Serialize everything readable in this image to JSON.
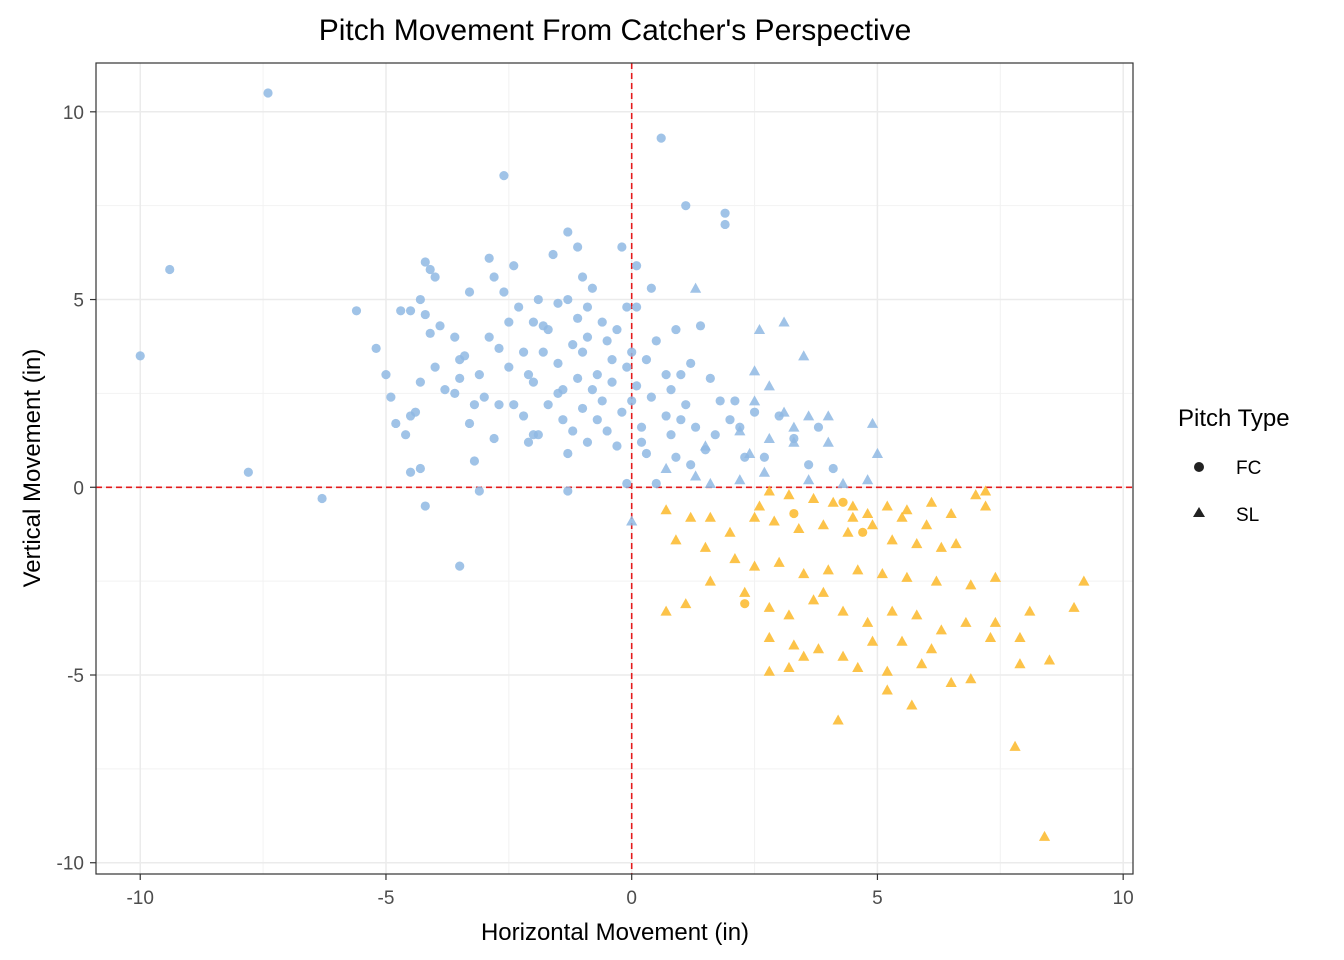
{
  "chart_data": {
    "type": "scatter",
    "title": "Pitch Movement From Catcher's Perspective",
    "xlabel": "Horizontal Movement (in)",
    "ylabel": "Vertical Movement (in)",
    "xlim": [
      -10.9,
      10.2
    ],
    "ylim": [
      -10.3,
      11.3
    ],
    "x_ticks": [
      -10,
      -5,
      0,
      5,
      10
    ],
    "y_ticks": [
      -10,
      -5,
      0,
      5,
      10
    ],
    "x_tick_labels": [
      "-10",
      "-5",
      "0",
      "5",
      "10"
    ],
    "y_tick_labels": [
      "-10",
      "-5",
      "0",
      "5",
      "10"
    ],
    "grid": true,
    "reference_lines": {
      "x": 0,
      "y": 0,
      "color": "#e41a1c",
      "style": "dashed"
    },
    "legend": {
      "title": "Pitch Type",
      "position": "right"
    },
    "point_color_rule": "blue when x<0 or y>0, orange when x>0 and y<0",
    "colors": {
      "blue": "#8fb8e3",
      "orange": "#fbb829"
    },
    "series": [
      {
        "name": "FC",
        "marker": "circle",
        "points": [
          [
            -10.0,
            3.5
          ],
          [
            -9.4,
            5.8
          ],
          [
            -7.4,
            10.5
          ],
          [
            -7.8,
            0.4
          ],
          [
            -6.3,
            -0.3
          ],
          [
            -5.6,
            4.7
          ],
          [
            -5.2,
            3.7
          ],
          [
            -5.0,
            3.0
          ],
          [
            -4.8,
            1.7
          ],
          [
            -4.7,
            4.7
          ],
          [
            -4.5,
            4.7
          ],
          [
            -4.5,
            1.9
          ],
          [
            -4.6,
            1.4
          ],
          [
            -4.5,
            0.4
          ],
          [
            -4.3,
            5.0
          ],
          [
            -4.3,
            2.8
          ],
          [
            -4.3,
            0.5
          ],
          [
            -4.2,
            6.0
          ],
          [
            -4.2,
            4.6
          ],
          [
            -4.1,
            5.8
          ],
          [
            -4.1,
            4.1
          ],
          [
            -4.0,
            3.2
          ],
          [
            -4.0,
            5.6
          ],
          [
            -3.9,
            4.3
          ],
          [
            -3.8,
            2.6
          ],
          [
            -3.6,
            4.0
          ],
          [
            -3.5,
            3.4
          ],
          [
            -3.5,
            2.9
          ],
          [
            -3.4,
            3.5
          ],
          [
            -3.3,
            5.2
          ],
          [
            -3.3,
            1.7
          ],
          [
            -3.2,
            2.2
          ],
          [
            -3.1,
            3.0
          ],
          [
            -3.0,
            2.4
          ],
          [
            -2.9,
            6.1
          ],
          [
            -2.9,
            4.0
          ],
          [
            -2.8,
            5.6
          ],
          [
            -2.8,
            1.3
          ],
          [
            -2.7,
            3.7
          ],
          [
            -2.7,
            2.2
          ],
          [
            -2.6,
            8.3
          ],
          [
            -2.6,
            5.2
          ],
          [
            -2.5,
            4.4
          ],
          [
            -2.5,
            3.2
          ],
          [
            -2.4,
            2.2
          ],
          [
            -2.4,
            5.9
          ],
          [
            -2.3,
            4.8
          ],
          [
            -2.2,
            3.6
          ],
          [
            -2.2,
            1.9
          ],
          [
            -2.1,
            1.2
          ],
          [
            -2.1,
            3.0
          ],
          [
            -2.0,
            2.8
          ],
          [
            -2.0,
            4.4
          ],
          [
            -1.9,
            5.0
          ],
          [
            -1.9,
            1.4
          ],
          [
            -1.8,
            4.3
          ],
          [
            -1.8,
            3.6
          ],
          [
            -1.7,
            2.2
          ],
          [
            -1.7,
            4.2
          ],
          [
            -1.6,
            6.2
          ],
          [
            -1.5,
            3.3
          ],
          [
            -1.5,
            4.9
          ],
          [
            -1.4,
            1.8
          ],
          [
            -1.4,
            2.6
          ],
          [
            -1.3,
            5.0
          ],
          [
            -1.3,
            6.8
          ],
          [
            -1.3,
            0.9
          ],
          [
            -1.2,
            3.8
          ],
          [
            -1.2,
            1.5
          ],
          [
            -1.1,
            6.4
          ],
          [
            -1.1,
            2.9
          ],
          [
            -1.1,
            4.5
          ],
          [
            -1.0,
            3.6
          ],
          [
            -1.0,
            2.1
          ],
          [
            -1.0,
            5.6
          ],
          [
            -0.9,
            4.8
          ],
          [
            -0.9,
            1.2
          ],
          [
            -0.8,
            5.3
          ],
          [
            -0.8,
            2.6
          ],
          [
            -0.7,
            3.0
          ],
          [
            -0.7,
            1.8
          ],
          [
            -0.6,
            4.4
          ],
          [
            -0.6,
            2.3
          ],
          [
            -0.5,
            3.9
          ],
          [
            -0.5,
            1.5
          ],
          [
            -0.4,
            3.4
          ],
          [
            -0.4,
            2.8
          ],
          [
            -0.3,
            4.2
          ],
          [
            -0.3,
            1.1
          ],
          [
            -0.2,
            6.4
          ],
          [
            -0.2,
            2.0
          ],
          [
            -0.1,
            4.8
          ],
          [
            -0.1,
            3.2
          ],
          [
            -0.1,
            0.1
          ],
          [
            0.0,
            2.3
          ],
          [
            0.0,
            3.6
          ],
          [
            0.1,
            4.8
          ],
          [
            0.1,
            2.7
          ],
          [
            0.2,
            1.6
          ],
          [
            0.2,
            1.2
          ],
          [
            0.3,
            3.4
          ],
          [
            0.3,
            0.9
          ],
          [
            0.4,
            2.4
          ],
          [
            0.4,
            5.3
          ],
          [
            0.5,
            0.1
          ],
          [
            0.5,
            3.9
          ],
          [
            0.6,
            9.3
          ],
          [
            0.7,
            1.9
          ],
          [
            0.7,
            3.0
          ],
          [
            0.8,
            1.4
          ],
          [
            0.8,
            2.6
          ],
          [
            0.9,
            0.8
          ],
          [
            0.9,
            4.2
          ],
          [
            1.0,
            1.8
          ],
          [
            1.0,
            3.0
          ],
          [
            1.1,
            7.5
          ],
          [
            1.1,
            2.2
          ],
          [
            1.2,
            0.6
          ],
          [
            1.2,
            3.3
          ],
          [
            1.3,
            1.6
          ],
          [
            1.4,
            4.3
          ],
          [
            1.5,
            1.0
          ],
          [
            1.6,
            2.9
          ],
          [
            1.7,
            1.4
          ],
          [
            1.8,
            2.3
          ],
          [
            1.9,
            7.0
          ],
          [
            1.9,
            7.3
          ],
          [
            2.0,
            1.8
          ],
          [
            2.1,
            2.3
          ],
          [
            2.2,
            1.6
          ],
          [
            2.3,
            0.8
          ],
          [
            2.5,
            2.0
          ],
          [
            2.7,
            0.8
          ],
          [
            3.0,
            1.9
          ],
          [
            3.3,
            1.3
          ],
          [
            3.6,
            0.6
          ],
          [
            3.8,
            1.6
          ],
          [
            4.1,
            0.5
          ],
          [
            2.3,
            -3.1
          ],
          [
            3.3,
            -0.7
          ],
          [
            4.3,
            -0.4
          ],
          [
            4.7,
            -1.2
          ],
          [
            -4.4,
            2.0
          ],
          [
            -3.2,
            0.7
          ],
          [
            -2.0,
            1.4
          ],
          [
            -0.9,
            4.0
          ],
          [
            0.1,
            5.9
          ],
          [
            -1.5,
            2.5
          ],
          [
            -3.6,
            2.5
          ],
          [
            -4.9,
            2.4
          ],
          [
            -3.5,
            -2.1
          ],
          [
            -4.2,
            -0.5
          ],
          [
            -3.1,
            -0.1
          ],
          [
            -1.3,
            -0.1
          ]
        ]
      },
      {
        "name": "SL",
        "marker": "triangle",
        "points": [
          [
            1.3,
            5.3
          ],
          [
            2.6,
            4.2
          ],
          [
            3.1,
            4.4
          ],
          [
            3.5,
            3.5
          ],
          [
            2.5,
            3.1
          ],
          [
            2.8,
            2.7
          ],
          [
            2.5,
            2.3
          ],
          [
            3.1,
            2.0
          ],
          [
            3.6,
            1.9
          ],
          [
            4.0,
            1.9
          ],
          [
            4.9,
            1.7
          ],
          [
            2.8,
            1.3
          ],
          [
            3.3,
            1.2
          ],
          [
            4.0,
            1.2
          ],
          [
            5.0,
            0.9
          ],
          [
            2.2,
            1.5
          ],
          [
            2.4,
            0.9
          ],
          [
            2.7,
            0.4
          ],
          [
            3.6,
            0.2
          ],
          [
            4.3,
            0.1
          ],
          [
            4.8,
            0.2
          ],
          [
            0.7,
            0.5
          ],
          [
            1.3,
            0.3
          ],
          [
            1.6,
            0.1
          ],
          [
            2.2,
            0.2
          ],
          [
            2.8,
            -0.1
          ],
          [
            3.2,
            -0.2
          ],
          [
            3.7,
            -0.3
          ],
          [
            4.1,
            -0.4
          ],
          [
            4.5,
            -0.5
          ],
          [
            4.8,
            -0.7
          ],
          [
            5.2,
            -0.5
          ],
          [
            5.6,
            -0.6
          ],
          [
            6.1,
            -0.4
          ],
          [
            6.5,
            -0.7
          ],
          [
            7.0,
            -0.2
          ],
          [
            7.2,
            -0.5
          ],
          [
            0.0,
            -0.9
          ],
          [
            0.7,
            -0.6
          ],
          [
            1.2,
            -0.8
          ],
          [
            1.6,
            -0.8
          ],
          [
            2.0,
            -1.2
          ],
          [
            2.5,
            -0.8
          ],
          [
            2.9,
            -0.9
          ],
          [
            3.4,
            -1.1
          ],
          [
            3.9,
            -1.0
          ],
          [
            4.4,
            -1.2
          ],
          [
            4.9,
            -1.0
          ],
          [
            5.3,
            -1.4
          ],
          [
            5.8,
            -1.5
          ],
          [
            6.3,
            -1.6
          ],
          [
            6.6,
            -1.5
          ],
          [
            0.9,
            -1.4
          ],
          [
            1.5,
            -1.6
          ],
          [
            2.1,
            -1.9
          ],
          [
            2.5,
            -2.1
          ],
          [
            3.0,
            -2.0
          ],
          [
            3.5,
            -2.3
          ],
          [
            4.0,
            -2.2
          ],
          [
            4.6,
            -2.2
          ],
          [
            5.1,
            -2.3
          ],
          [
            5.6,
            -2.4
          ],
          [
            6.2,
            -2.5
          ],
          [
            6.9,
            -2.6
          ],
          [
            7.4,
            -2.4
          ],
          [
            0.7,
            -3.3
          ],
          [
            1.1,
            -3.1
          ],
          [
            2.3,
            -2.8
          ],
          [
            2.8,
            -3.2
          ],
          [
            3.2,
            -3.4
          ],
          [
            3.7,
            -3.0
          ],
          [
            4.3,
            -3.3
          ],
          [
            4.8,
            -3.6
          ],
          [
            5.3,
            -3.3
          ],
          [
            5.8,
            -3.4
          ],
          [
            6.3,
            -3.8
          ],
          [
            6.8,
            -3.6
          ],
          [
            7.4,
            -3.6
          ],
          [
            8.1,
            -3.3
          ],
          [
            9.0,
            -3.2
          ],
          [
            9.2,
            -2.5
          ],
          [
            2.8,
            -4.0
          ],
          [
            3.3,
            -4.2
          ],
          [
            3.8,
            -4.3
          ],
          [
            4.3,
            -4.5
          ],
          [
            4.9,
            -4.1
          ],
          [
            5.5,
            -4.1
          ],
          [
            6.1,
            -4.3
          ],
          [
            7.3,
            -4.0
          ],
          [
            7.9,
            -4.0
          ],
          [
            2.8,
            -4.9
          ],
          [
            3.2,
            -4.8
          ],
          [
            3.5,
            -4.5
          ],
          [
            4.6,
            -4.8
          ],
          [
            5.2,
            -4.9
          ],
          [
            5.9,
            -4.7
          ],
          [
            6.5,
            -5.2
          ],
          [
            6.9,
            -5.1
          ],
          [
            7.9,
            -4.7
          ],
          [
            8.5,
            -4.6
          ],
          [
            5.2,
            -5.4
          ],
          [
            5.7,
            -5.8
          ],
          [
            4.2,
            -6.2
          ],
          [
            7.8,
            -6.9
          ],
          [
            8.4,
            -9.3
          ],
          [
            1.6,
            -2.5
          ],
          [
            3.9,
            -2.8
          ],
          [
            6.0,
            -1.0
          ],
          [
            7.2,
            -0.1
          ],
          [
            2.6,
            -0.5
          ],
          [
            3.3,
            1.6
          ],
          [
            1.5,
            1.1
          ],
          [
            4.5,
            -0.8
          ],
          [
            5.5,
            -0.8
          ]
        ]
      }
    ]
  }
}
